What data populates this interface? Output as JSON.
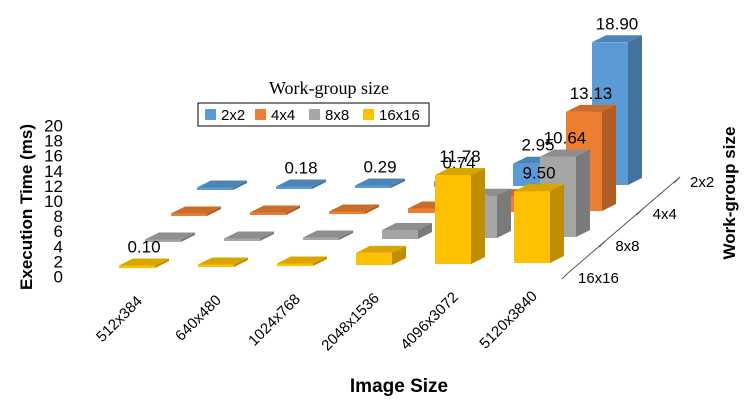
{
  "chart_data": {
    "type": "bar",
    "subtype": "3d-clustered-column",
    "title": "",
    "legend": {
      "title": "Work-group size",
      "placement": "top-center"
    },
    "xlabel": "Image Size",
    "ylabel": "Execution Time (ms)",
    "zlabel": "Work-group size",
    "ylim": [
      0,
      20
    ],
    "yticks": [
      "0",
      "2",
      "4",
      "6",
      "8",
      "10",
      "12",
      "14",
      "16",
      "18",
      "20"
    ],
    "grid": false,
    "categories": [
      "512x384",
      "640x480",
      "1024x768",
      "2048x1536",
      "4096x3072",
      "5120x3840"
    ],
    "series": [
      {
        "name": "2x2",
        "color": "#5B9BD5",
        "values": [
          0.25,
          0.18,
          0.29,
          0.74,
          2.95,
          18.9
        ],
        "data_labels": [
          "",
          "0.18",
          "0.29",
          "0.74",
          "2.95",
          "18.90"
        ]
      },
      {
        "name": "4x4",
        "color": "#ED7D31",
        "values": [
          0.15,
          0.15,
          0.2,
          0.6,
          2.1,
          13.13
        ],
        "data_labels": [
          "",
          "",
          "",
          "",
          "",
          "13.13"
        ]
      },
      {
        "name": "8x8",
        "color": "#A5A5A5",
        "values": [
          0.12,
          0.12,
          0.18,
          1.2,
          5.6,
          10.64
        ],
        "data_labels": [
          "",
          "",
          "",
          "",
          "",
          "10.64"
        ]
      },
      {
        "name": "16x16",
        "color": "#FFC000",
        "values": [
          0.1,
          0.1,
          0.25,
          1.6,
          11.78,
          9.5
        ],
        "data_labels": [
          "0.10",
          "",
          "",
          "",
          "11.78",
          "9.50"
        ]
      }
    ]
  }
}
